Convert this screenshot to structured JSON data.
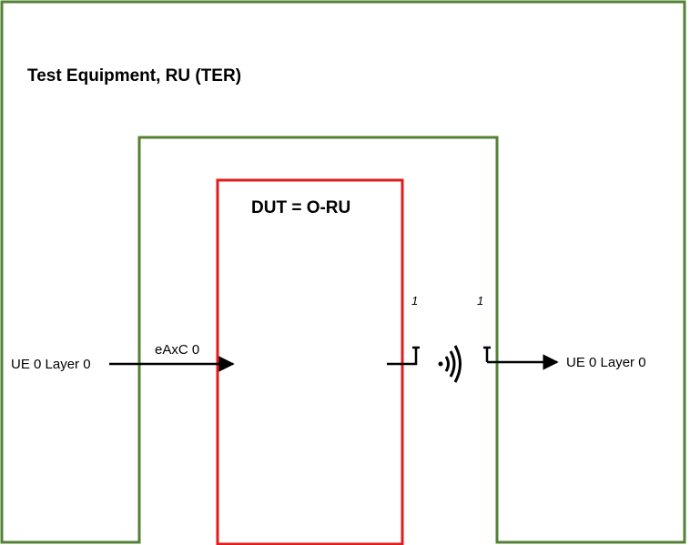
{
  "diagram": {
    "outer_box": {
      "title": "Test Equipment,  RU (TER)",
      "color": "#538135"
    },
    "dut_box": {
      "title": "DUT = O-RU",
      "color": "#e31b1b"
    },
    "input_signal": {
      "label": "UE 0 Layer 0",
      "channel_label": "eAxC 0"
    },
    "output_signal": {
      "label": "UE 0 Layer 0"
    },
    "dut_port": {
      "number": "1"
    },
    "ter_port": {
      "number": "1"
    },
    "wireless_icon": "wireless-signal-icon"
  }
}
